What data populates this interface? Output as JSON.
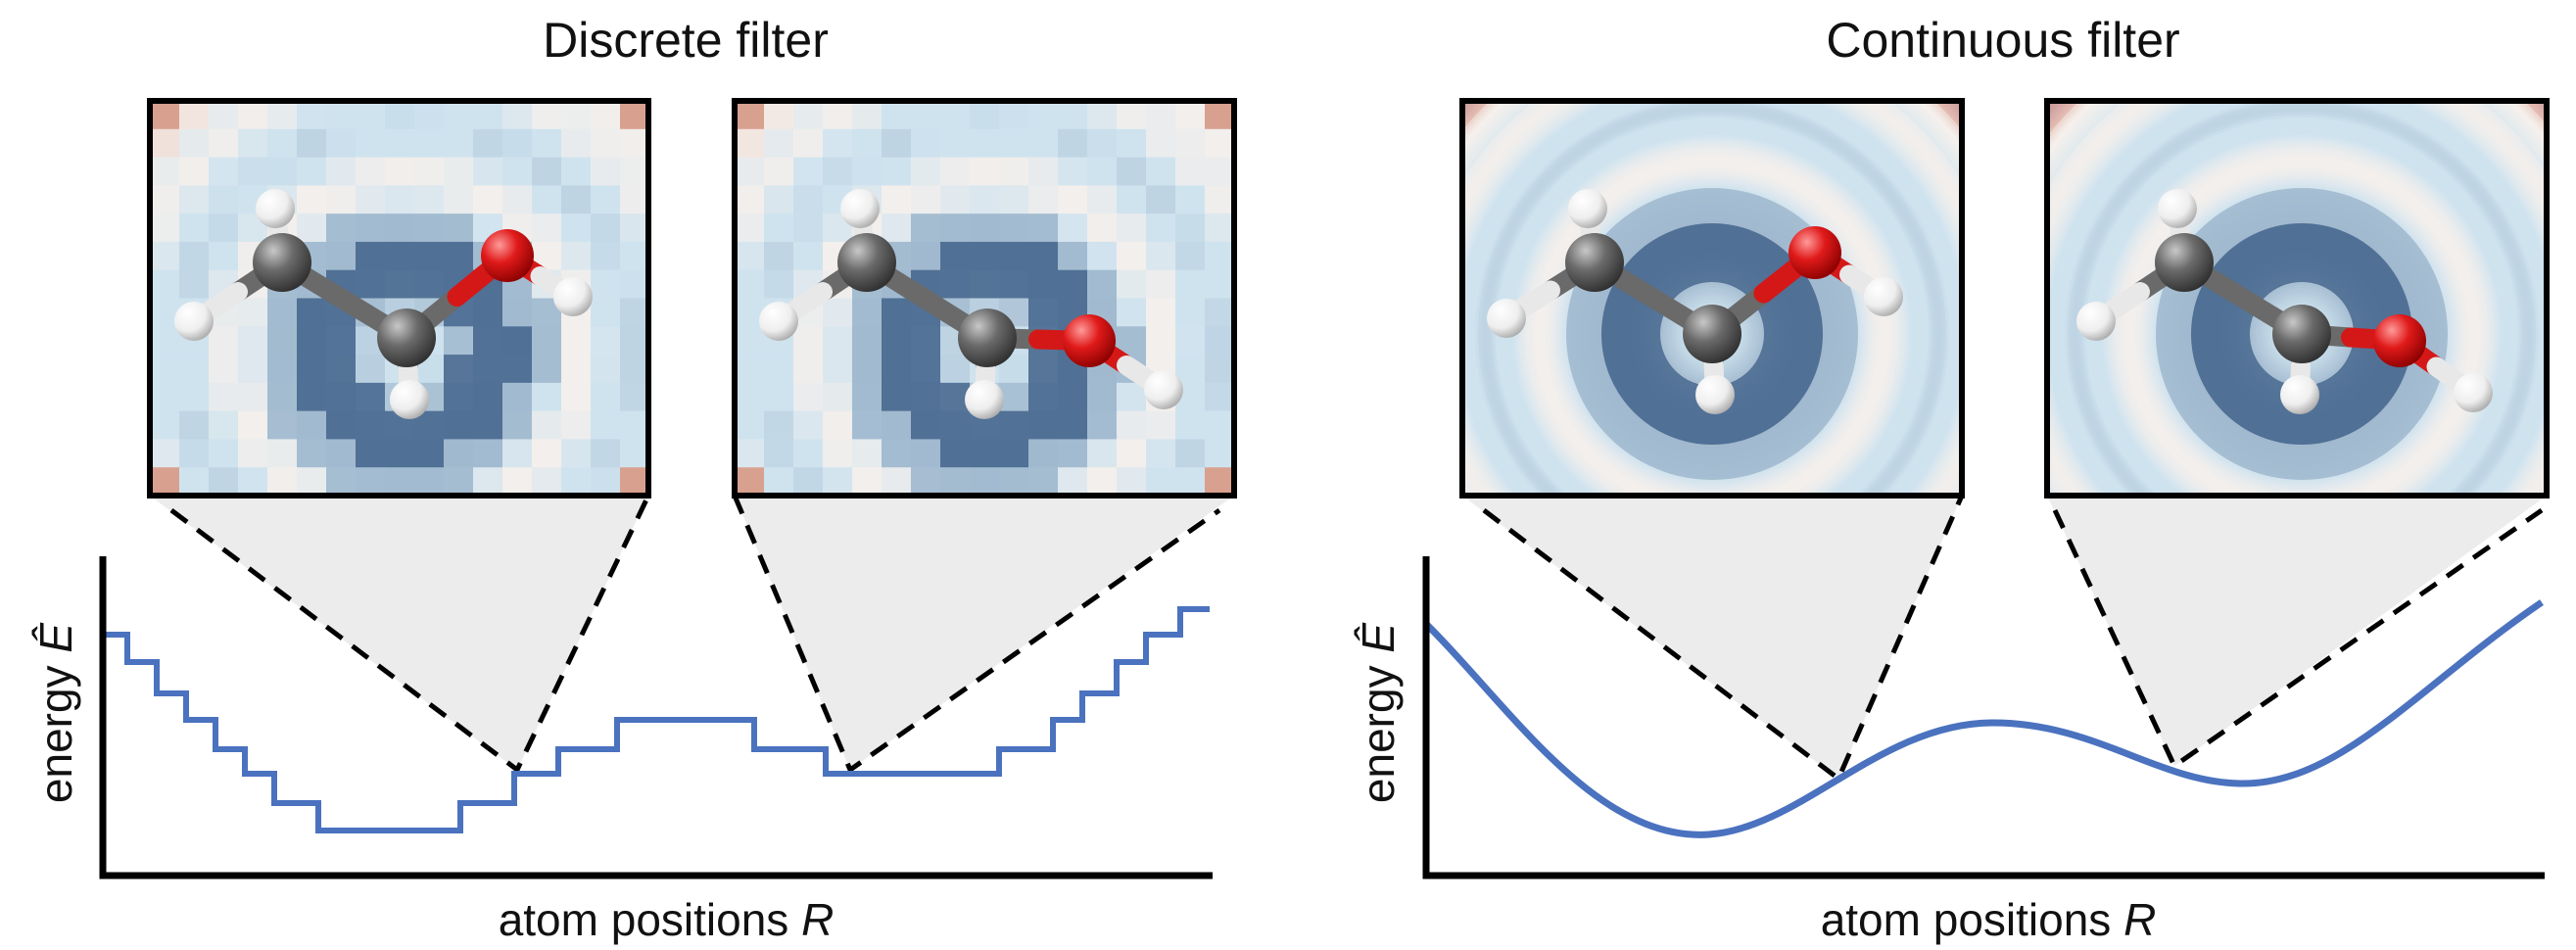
{
  "panels": [
    {
      "title": "Discrete filter",
      "xlabel_text": "atom positions ",
      "xlabel_var": "R",
      "ylabel_text": "energy ",
      "ylabel_var": "Ê",
      "filter": "discrete",
      "curve": "step"
    },
    {
      "title": "Continuous filter",
      "xlabel_text": "atom positions ",
      "xlabel_var": "R",
      "ylabel_text": "energy ",
      "ylabel_var": "Ê",
      "filter": "continuous",
      "curve": "smooth"
    }
  ],
  "colors": {
    "curve": "#4a72bf",
    "axis": "#000000",
    "projection": "#ececec",
    "filter_positive": "#c97a63",
    "filter_negative": "#4d6d93",
    "filter_neutral": "#cfe3ef",
    "atom_carbon": "#555555",
    "atom_oxygen": "#d41818",
    "atom_hydrogen": "#f2f2f2"
  }
}
